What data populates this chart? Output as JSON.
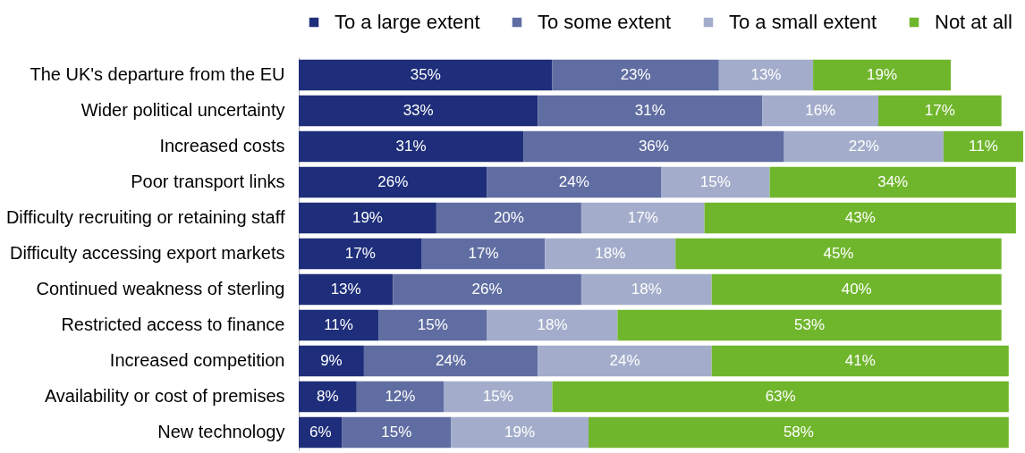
{
  "chart_data": {
    "type": "bar",
    "orientation": "horizontal",
    "stacked": true,
    "legend": "top",
    "categories": [
      "The UK's departure from the EU",
      "Wider political uncertainty",
      "Increased costs",
      "Poor transport links",
      "Difficulty recruiting or retaining staff",
      "Difficulty accessing export markets",
      "Continued weakness of sterling",
      "Restricted access to finance",
      "Increased competition",
      "Availability or cost of premises",
      "New technology"
    ],
    "series": [
      {
        "name": "To a large extent",
        "color": "#1e2e7a",
        "values": [
          35,
          33,
          31,
          26,
          19,
          17,
          13,
          11,
          9,
          8,
          6
        ],
        "value_labels": [
          "35%",
          "33%",
          "31%",
          "26%",
          "19%",
          "17%",
          "13%",
          "11%",
          "9%",
          "8%",
          "6%"
        ]
      },
      {
        "name": "To some extent",
        "color": "#606da2",
        "values": [
          23,
          31,
          36,
          24,
          20,
          17,
          26,
          15,
          24,
          12,
          15
        ],
        "value_labels": [
          "23%",
          "31%",
          "36%",
          "24%",
          "20%",
          "17%",
          "26%",
          "15%",
          "24%",
          "12%",
          "15%"
        ]
      },
      {
        "name": "To a small extent",
        "color": "#a3adcb",
        "values": [
          13,
          16,
          22,
          15,
          17,
          18,
          18,
          18,
          24,
          15,
          19
        ],
        "value_labels": [
          "13%",
          "16%",
          "22%",
          "15%",
          "17%",
          "18%",
          "18%",
          "18%",
          "24%",
          "15%",
          "19%"
        ]
      },
      {
        "name": "Not at all",
        "color": "#70b62c",
        "values": [
          19,
          17,
          11,
          34,
          43,
          45,
          40,
          53,
          41,
          63,
          58
        ],
        "value_labels": [
          "19%",
          "17%",
          "11%",
          "34%",
          "43%",
          "45%",
          "40%",
          "53%",
          "41%",
          "63%",
          "58%"
        ]
      }
    ]
  }
}
